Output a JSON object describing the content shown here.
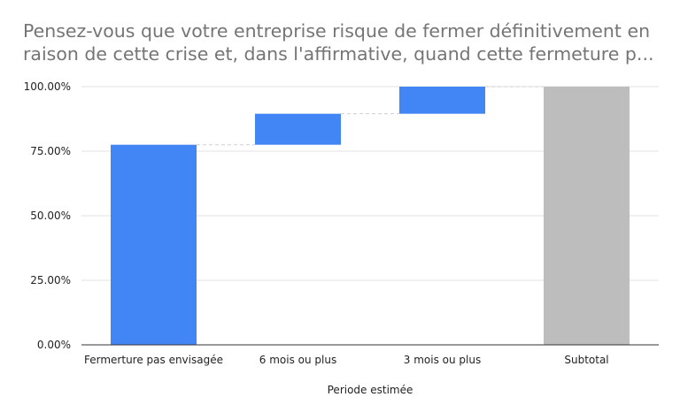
{
  "title": {
    "line1": "Pensez-vous que votre entreprise risque de fermer définitivement en",
    "line2": "raison de cette crise et, dans l'affirmative, quand cette fermeture p..."
  },
  "chart_data": {
    "type": "bar",
    "subtype": "waterfall",
    "title": "Pensez-vous que votre entreprise risque de fermer définitivement en raison de cette crise et, dans l'affirmative, quand cette fermeture p...",
    "xlabel": "Periode estimée",
    "ylabel": "",
    "ylim": [
      0,
      1
    ],
    "yticks": [
      {
        "value": 0,
        "label": "0.00%"
      },
      {
        "value": 0.25,
        "label": "25.00%"
      },
      {
        "value": 0.5,
        "label": "50.00%"
      },
      {
        "value": 0.75,
        "label": "75.00%"
      },
      {
        "value": 1,
        "label": "100.00%"
      }
    ],
    "categories": [
      "Fermerture pas envisagée",
      "6 mois ou plus",
      "3 mois ou plus",
      "Subtotal"
    ],
    "values": [
      0.775,
      0.12,
      0.105,
      1.0
    ],
    "is_total": [
      false,
      false,
      false,
      true
    ],
    "grid": true,
    "colors": {
      "increase": "#4285f4",
      "total": "#bdbdbd",
      "connector": "#cfcfcf",
      "grid": "#e0e0e0",
      "baseline": "#333333"
    }
  }
}
